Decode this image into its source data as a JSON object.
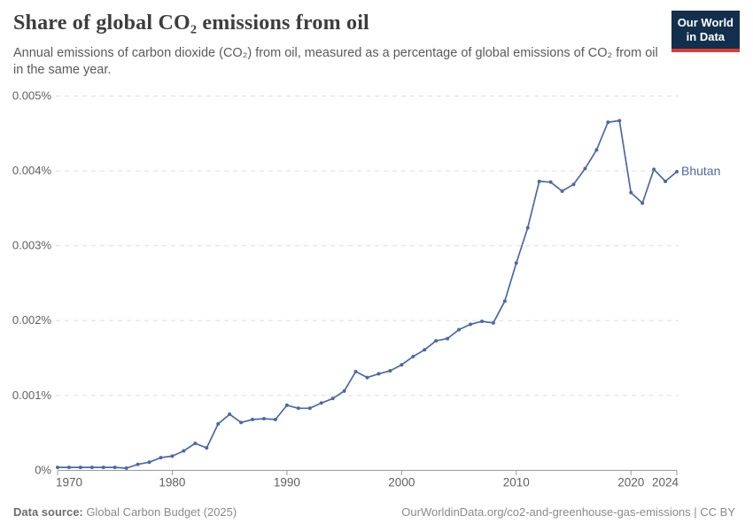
{
  "header": {
    "title": "Share of global CO₂ emissions from oil",
    "subtitle": "Annual emissions of carbon dioxide (CO₂) from oil, measured as a percentage of global emissions of CO₂ from oil in the same year.",
    "logo": {
      "line1": "Our World",
      "line2": "in Data"
    }
  },
  "footer": {
    "source_label": "Data source:",
    "source_value": "Global Carbon Budget (2025)",
    "attribution": "OurWorldinData.org/co2-and-greenhouse-gas-emissions | CC BY"
  },
  "colors": {
    "series": "#4c69a5",
    "grid": "#dddddd",
    "axis": "#999999",
    "tick_text": "#5f5f5f",
    "logo_bg": "#12304e",
    "logo_stripe": "#dc3b31"
  },
  "chart_data": {
    "type": "line",
    "title": "Share of global CO₂ emissions from oil",
    "xlabel": "",
    "ylabel": "",
    "unit": "%",
    "grid": "horizontal-dashed",
    "legend_position": "end-of-line-label",
    "xlim": [
      1970,
      2024
    ],
    "ylim": [
      0,
      0.005
    ],
    "x_ticks": [
      1970,
      1980,
      1990,
      2000,
      2010,
      2020,
      2024
    ],
    "y_ticks": [
      0,
      0.001,
      0.002,
      0.003,
      0.004,
      0.005
    ],
    "y_tick_labels": [
      "0%",
      "0.001%",
      "0.002%",
      "0.003%",
      "0.004%",
      "0.005%"
    ],
    "series": [
      {
        "name": "Bhutan",
        "color": "#4c69a5",
        "x": [
          1970,
          1971,
          1972,
          1973,
          1974,
          1975,
          1976,
          1977,
          1978,
          1979,
          1980,
          1981,
          1982,
          1983,
          1984,
          1985,
          1986,
          1987,
          1988,
          1989,
          1990,
          1991,
          1992,
          1993,
          1994,
          1995,
          1996,
          1997,
          1998,
          1999,
          2000,
          2001,
          2002,
          2003,
          2004,
          2005,
          2006,
          2007,
          2008,
          2009,
          2010,
          2011,
          2012,
          2013,
          2014,
          2015,
          2016,
          2017,
          2018,
          2019,
          2020,
          2021,
          2022,
          2023,
          2024
        ],
        "values": [
          4e-05,
          4e-05,
          4e-05,
          4e-05,
          4e-05,
          4e-05,
          3e-05,
          8e-05,
          0.00011,
          0.00017,
          0.00019,
          0.00026,
          0.00036,
          0.0003,
          0.00062,
          0.00075,
          0.00064,
          0.00068,
          0.00069,
          0.00068,
          0.00087,
          0.00083,
          0.00083,
          0.0009,
          0.00096,
          0.00106,
          0.00132,
          0.00124,
          0.00129,
          0.00133,
          0.00141,
          0.00152,
          0.00161,
          0.00173,
          0.00176,
          0.00188,
          0.00195,
          0.00199,
          0.00197,
          0.00226,
          0.00277,
          0.00324,
          0.00386,
          0.00385,
          0.00373,
          0.00382,
          0.00403,
          0.00428,
          0.00465,
          0.00467,
          0.00371,
          0.00357,
          0.00402,
          0.00386,
          0.00399
        ]
      }
    ]
  }
}
